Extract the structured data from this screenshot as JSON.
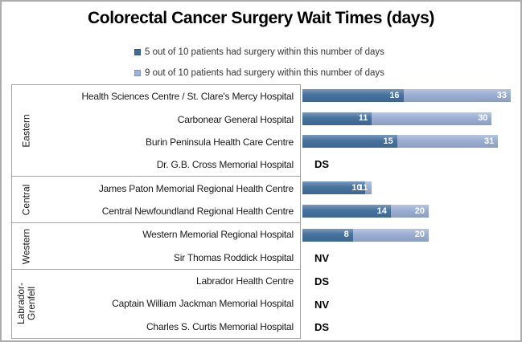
{
  "title": "Colorectal Cancer Surgery Wait Times (days)",
  "legend": [
    {
      "label": "5 out of 10 patients had surgery within this number of days",
      "color": "#3E6A9E"
    },
    {
      "label": "9 out of 10 patients had surgery within this number of days",
      "color": "#9DB3D8"
    }
  ],
  "chart_data": {
    "type": "bar",
    "orientation": "horizontal",
    "stacked": true,
    "title": "Colorectal Cancer Surgery Wait Times (days)",
    "unit": "days",
    "x_max": 33,
    "legend_position": "top",
    "grid": false,
    "series_names": [
      "5 out of 10 patients had surgery within this number of days",
      "9 out of 10 patients had surgery within this number of days"
    ],
    "colors": {
      "p50": "#45729F",
      "p90": "#9BAFD4"
    },
    "notes_meaning": {
      "DS": "DS",
      "NV": "NV"
    },
    "groups": [
      {
        "region": "Eastern",
        "hospitals": [
          {
            "name": "Health Sciences Centre / St. Clare's Mercy Hospital",
            "p50": 16,
            "p90": 33
          },
          {
            "name": "Carbonear General Hospital",
            "p50": 11,
            "p90": 30
          },
          {
            "name": "Burin Peninsula Health Care Centre",
            "p50": 15,
            "p90": 31
          },
          {
            "name": "Dr. G.B. Cross Memorial Hospital",
            "note": "DS"
          }
        ]
      },
      {
        "region": "Central",
        "hospitals": [
          {
            "name": "James Paton Memorial Regional Health Centre",
            "p50": 10,
            "p90": 11
          },
          {
            "name": "Central Newfoundland Regional Health Centre",
            "p50": 14,
            "p90": 20
          }
        ]
      },
      {
        "region": "Western",
        "hospitals": [
          {
            "name": "Western Memorial Regional Hospital",
            "p50": 8,
            "p90": 20
          },
          {
            "name": "Sir Thomas Roddick Hospital",
            "note": "NV"
          }
        ]
      },
      {
        "region": "Labrador-Grenfell",
        "hospitals": [
          {
            "name": "Labrador Health Centre",
            "note": "DS"
          },
          {
            "name": "Captain William Jackman Memorial Hospital",
            "note": "NV"
          },
          {
            "name": "Charles S. Curtis Memorial Hospital",
            "note": "DS"
          }
        ]
      }
    ]
  }
}
